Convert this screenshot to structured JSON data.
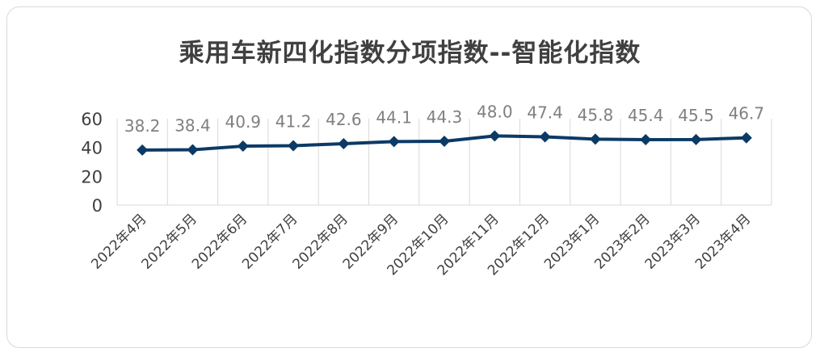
{
  "chart_data": {
    "type": "line",
    "title": "乘用车新四化指数分项指数--智能化指数",
    "categories": [
      "2022年4月",
      "2022年5月",
      "2022年6月",
      "2022年7月",
      "2022年8月",
      "2022年9月",
      "2022年10月",
      "2022年11月",
      "2022年12月",
      "2023年1月",
      "2023年2月",
      "2023年3月",
      "2023年4月"
    ],
    "series": [
      {
        "values": [
          38.2,
          38.4,
          40.9,
          41.2,
          42.6,
          44.1,
          44.3,
          48.0,
          47.4,
          45.8,
          45.4,
          45.5,
          46.7
        ]
      }
    ],
    "data_labels": [
      "38.2",
      "38.4",
      "40.9",
      "41.2",
      "42.6",
      "44.1",
      "44.3",
      "48.0",
      "47.4",
      "45.8",
      "45.4",
      "45.5",
      "46.7"
    ],
    "yticks": [
      "0",
      "20",
      "40",
      "60"
    ],
    "ylim": [
      0,
      60
    ],
    "xlabel": "",
    "ylabel": "",
    "grid": "vertical",
    "legend": "none",
    "colors": {
      "line": "#0b3a66",
      "marker": "#0b3a66",
      "grid": "#d9d9d9",
      "text": "#404040",
      "label": "#808080"
    }
  }
}
